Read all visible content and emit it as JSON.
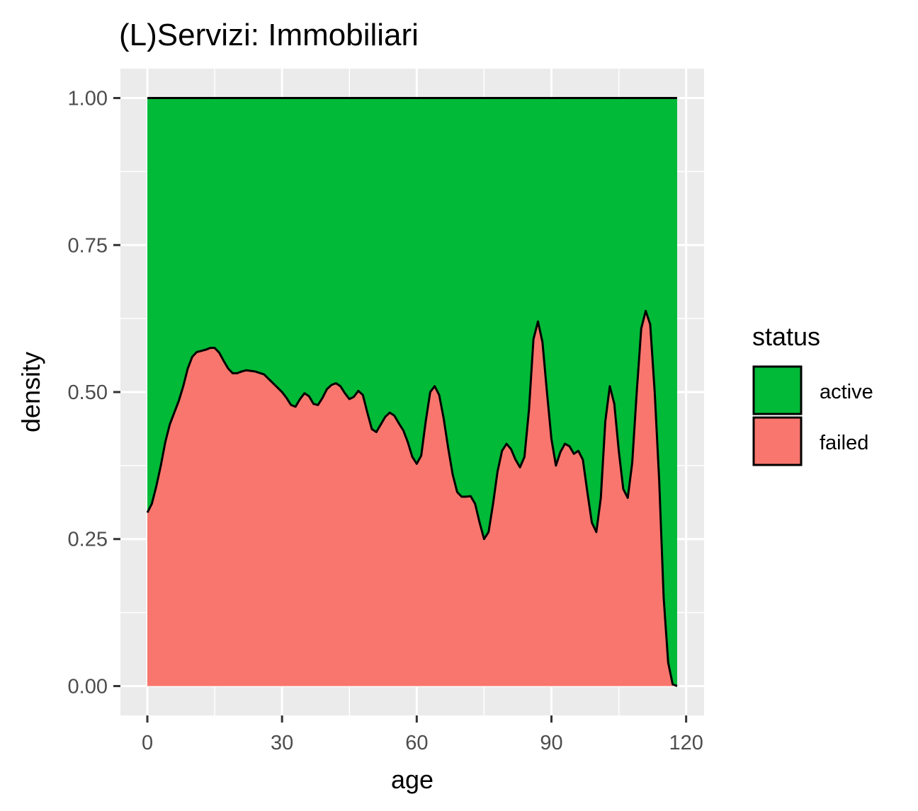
{
  "chart_data": {
    "type": "area",
    "subtype": "stacked-density-fill",
    "title": "(L)Servizi: Immobiliari",
    "xlabel": "age",
    "ylabel": "density",
    "xlim": [
      -6,
      124
    ],
    "ylim": [
      -0.05,
      1.05
    ],
    "x_ticks": [
      0,
      30,
      60,
      90,
      120
    ],
    "x_tick_labels": [
      "0",
      "30",
      "60",
      "90",
      "120"
    ],
    "y_ticks": [
      0,
      0.25,
      0.5,
      0.75,
      1.0
    ],
    "y_tick_labels": [
      "0.00",
      "0.25",
      "0.50",
      "0.75",
      "1.00"
    ],
    "grid": true,
    "panel_background": "#ebebeb",
    "legend": {
      "title": "status",
      "position": "right",
      "entries": [
        {
          "label": "active",
          "color": "#00ba38"
        },
        {
          "label": "failed",
          "color": "#f8766d"
        }
      ]
    },
    "series": [
      {
        "name": "failed",
        "color": "#f8766d",
        "points": [
          [
            0,
            0.295
          ],
          [
            1,
            0.31
          ],
          [
            2,
            0.34
          ],
          [
            3,
            0.375
          ],
          [
            4,
            0.415
          ],
          [
            5,
            0.445
          ],
          [
            6,
            0.465
          ],
          [
            7,
            0.485
          ],
          [
            8,
            0.51
          ],
          [
            9,
            0.54
          ],
          [
            10,
            0.56
          ],
          [
            11,
            0.568
          ],
          [
            12,
            0.57
          ],
          [
            13,
            0.572
          ],
          [
            14,
            0.575
          ],
          [
            15,
            0.575
          ],
          [
            16,
            0.567
          ],
          [
            17,
            0.553
          ],
          [
            18,
            0.54
          ],
          [
            19,
            0.532
          ],
          [
            20,
            0.532
          ],
          [
            21,
            0.535
          ],
          [
            22,
            0.537
          ],
          [
            24,
            0.535
          ],
          [
            26,
            0.53
          ],
          [
            28,
            0.515
          ],
          [
            30,
            0.5
          ],
          [
            31,
            0.49
          ],
          [
            32,
            0.478
          ],
          [
            33,
            0.475
          ],
          [
            34,
            0.488
          ],
          [
            35,
            0.498
          ],
          [
            36,
            0.493
          ],
          [
            37,
            0.48
          ],
          [
            38,
            0.478
          ],
          [
            39,
            0.49
          ],
          [
            40,
            0.505
          ],
          [
            41,
            0.512
          ],
          [
            42,
            0.515
          ],
          [
            43,
            0.51
          ],
          [
            44,
            0.498
          ],
          [
            45,
            0.488
          ],
          [
            46,
            0.492
          ],
          [
            47,
            0.502
          ],
          [
            48,
            0.495
          ],
          [
            49,
            0.465
          ],
          [
            50,
            0.437
          ],
          [
            51,
            0.432
          ],
          [
            52,
            0.445
          ],
          [
            53,
            0.458
          ],
          [
            54,
            0.465
          ],
          [
            55,
            0.46
          ],
          [
            56,
            0.447
          ],
          [
            57,
            0.435
          ],
          [
            58,
            0.415
          ],
          [
            59,
            0.39
          ],
          [
            60,
            0.378
          ],
          [
            61,
            0.392
          ],
          [
            62,
            0.45
          ],
          [
            63,
            0.5
          ],
          [
            64,
            0.51
          ],
          [
            65,
            0.495
          ],
          [
            66,
            0.455
          ],
          [
            67,
            0.405
          ],
          [
            68,
            0.36
          ],
          [
            69,
            0.33
          ],
          [
            70,
            0.322
          ],
          [
            71,
            0.322
          ],
          [
            72,
            0.323
          ],
          [
            73,
            0.31
          ],
          [
            74,
            0.278
          ],
          [
            75,
            0.25
          ],
          [
            76,
            0.262
          ],
          [
            77,
            0.31
          ],
          [
            78,
            0.365
          ],
          [
            79,
            0.4
          ],
          [
            80,
            0.412
          ],
          [
            81,
            0.403
          ],
          [
            82,
            0.385
          ],
          [
            83,
            0.372
          ],
          [
            84,
            0.39
          ],
          [
            85,
            0.47
          ],
          [
            86,
            0.59
          ],
          [
            87,
            0.62
          ],
          [
            88,
            0.585
          ],
          [
            89,
            0.5
          ],
          [
            90,
            0.42
          ],
          [
            91,
            0.375
          ],
          [
            92,
            0.398
          ],
          [
            93,
            0.412
          ],
          [
            94,
            0.408
          ],
          [
            95,
            0.395
          ],
          [
            96,
            0.4
          ],
          [
            97,
            0.385
          ],
          [
            98,
            0.33
          ],
          [
            99,
            0.278
          ],
          [
            100,
            0.262
          ],
          [
            101,
            0.32
          ],
          [
            102,
            0.45
          ],
          [
            103,
            0.51
          ],
          [
            104,
            0.48
          ],
          [
            105,
            0.4
          ],
          [
            106,
            0.335
          ],
          [
            107,
            0.32
          ],
          [
            108,
            0.38
          ],
          [
            109,
            0.5
          ],
          [
            110,
            0.608
          ],
          [
            111,
            0.638
          ],
          [
            112,
            0.615
          ],
          [
            113,
            0.5
          ],
          [
            114,
            0.35
          ],
          [
            115,
            0.15
          ],
          [
            116,
            0.04
          ],
          [
            117,
            0.003
          ],
          [
            118,
            0.0
          ]
        ]
      },
      {
        "name": "active",
        "color": "#00ba38",
        "description_note": "",
        "upper_value": 1.0
      }
    ]
  }
}
